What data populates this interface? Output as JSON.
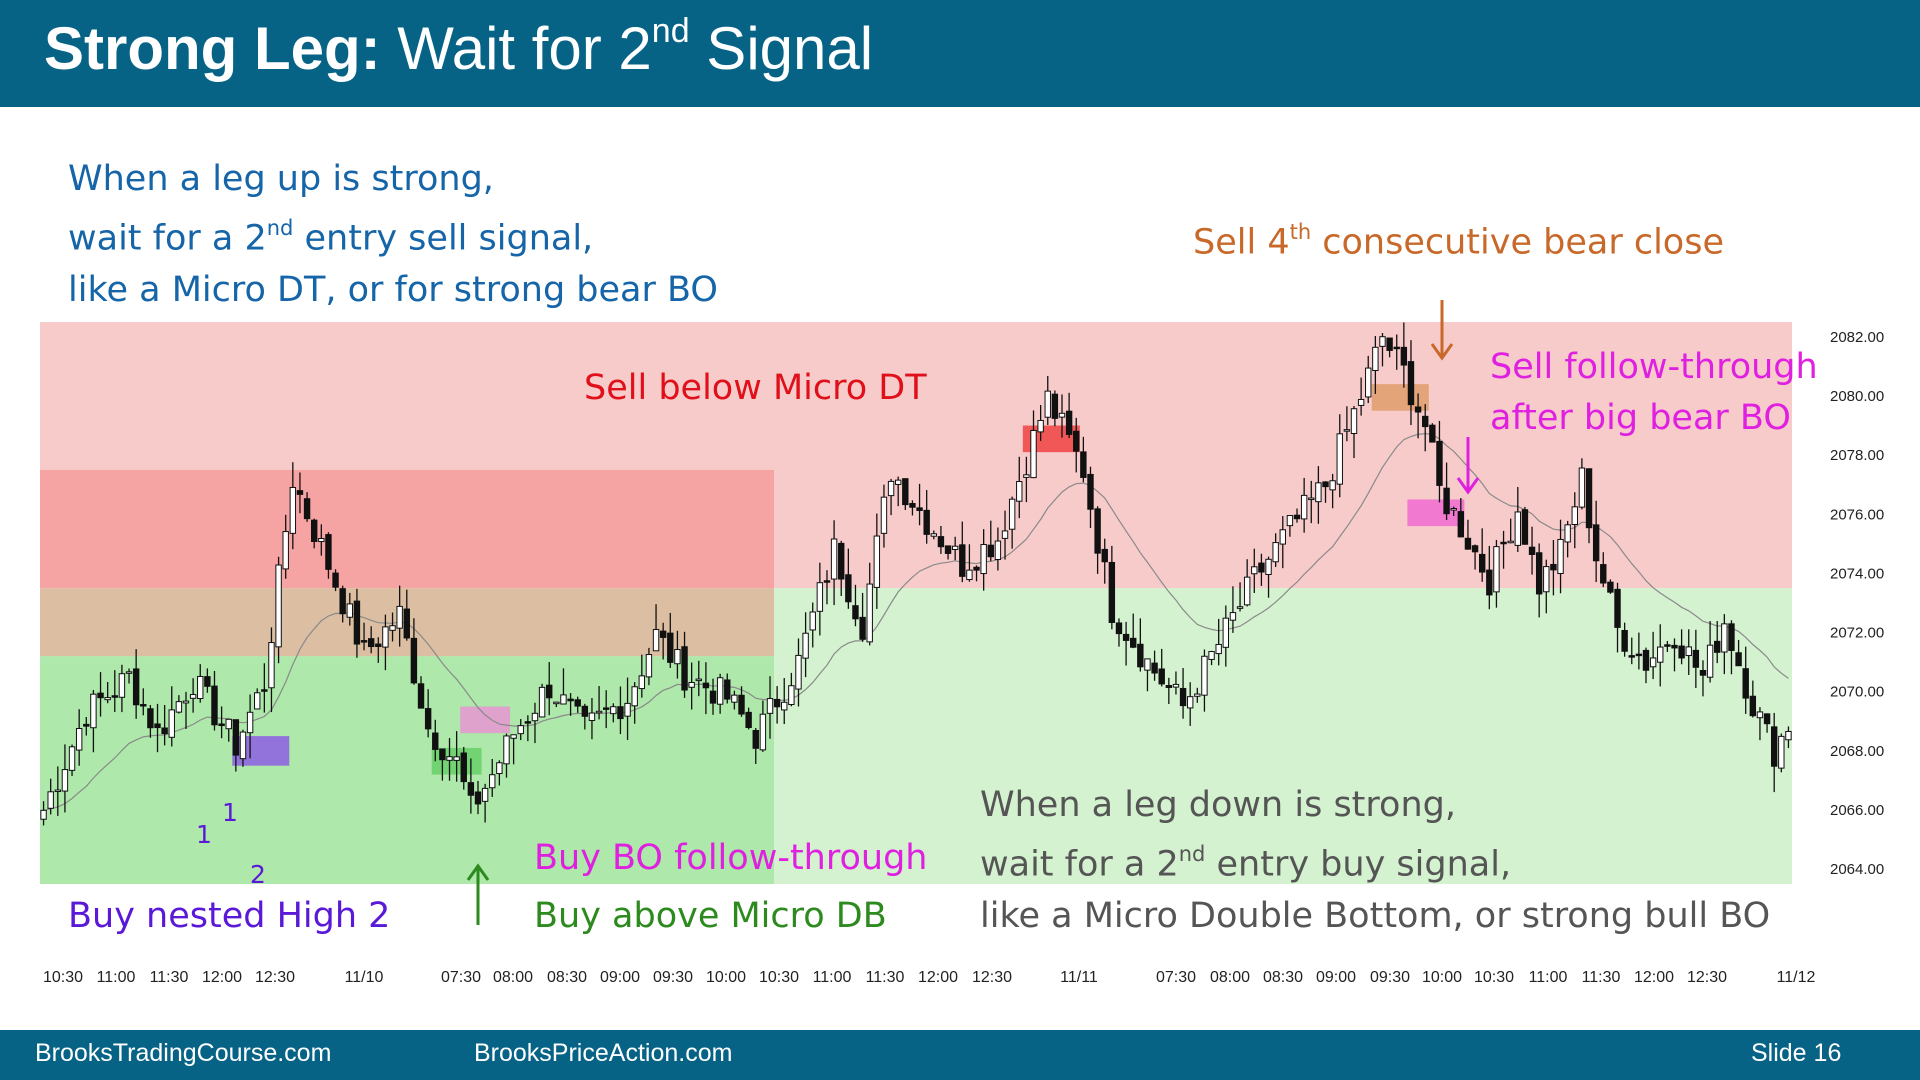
{
  "title": {
    "bold": "Strong Leg:",
    "pre": " Wait for 2",
    "sup": "nd",
    "post": " Signal"
  },
  "annotations": {
    "top_left": {
      "line1": "When a leg up is strong,",
      "line2_pre": "wait for a 2",
      "line2_sup": "nd",
      "line2_post": " entry sell signal,",
      "line3": "like a Micro DT, or for strong bear BO"
    },
    "sell_4th": {
      "pre": "Sell 4",
      "sup": "th",
      "post": " consecutive bear close"
    },
    "sell_micro_dt": "Sell below Micro DT",
    "sell_ft": {
      "line1": "Sell follow-through",
      "line2": "after big bear BO"
    },
    "buy_bo_ft": "Buy BO follow-through",
    "buy_micro_db": "Buy above Micro DB",
    "buy_nested": "Buy nested High 2",
    "bottom_right": {
      "line1": "When a leg down is strong,",
      "line2_pre": "wait for a 2",
      "line2_sup": "nd",
      "line2_post": " entry buy signal,",
      "line3": "like a Micro Double Bottom, or strong bull BO"
    },
    "counts": [
      "1",
      "1",
      "2"
    ]
  },
  "footer": {
    "left": "BrooksTradingCourse.com",
    "center": "BrooksPriceAction.com",
    "right": "Slide  16"
  },
  "colors": {
    "header": "#076386",
    "blue_text": "#1565a8",
    "orange_text": "#c8692a",
    "red_text": "#e0101a",
    "magenta_text": "#e020e0",
    "green_text": "#2d8a1e",
    "purple_text": "#5a18d8",
    "gray_text": "#555555"
  },
  "chart_data": {
    "type": "candlestick",
    "ylim": [
      2063.5,
      2082.5
    ],
    "y_ticks": [
      "2082.00",
      "2080.00",
      "2078.00",
      "2076.00",
      "2074.00",
      "2072.00",
      "2070.00",
      "2068.00",
      "2066.00",
      "2064.00"
    ],
    "x_ticks": [
      "10:30",
      "11:00",
      "11:30",
      "12:00",
      "12:30",
      "11/10",
      "07:30",
      "08:00",
      "08:30",
      "09:00",
      "09:30",
      "10:00",
      "10:30",
      "11:00",
      "11:30",
      "12:00",
      "12:30",
      "11/11",
      "07:30",
      "08:00",
      "08:30",
      "09:00",
      "09:30",
      "10:00",
      "10:30",
      "11:00",
      "11:30",
      "12:00",
      "12:30",
      "11/12"
    ],
    "close_path": [
      [
        0,
        2066.0
      ],
      [
        6,
        2069.3
      ],
      [
        12,
        2070.5
      ],
      [
        16,
        2068.6
      ],
      [
        21,
        2070.4
      ],
      [
        27,
        2068.2
      ],
      [
        31,
        2070.3
      ],
      [
        35,
        2077.2
      ],
      [
        40,
        2074.3
      ],
      [
        45,
        2071.3
      ],
      [
        50,
        2072.6
      ],
      [
        54,
        2068.8
      ],
      [
        58,
        2067.6
      ],
      [
        60,
        2066.0
      ],
      [
        63,
        2067.2
      ],
      [
        66,
        2068.6
      ],
      [
        71,
        2070.2
      ],
      [
        76,
        2068.7
      ],
      [
        82,
        2069.8
      ],
      [
        86,
        2071.9
      ],
      [
        90,
        2070.6
      ],
      [
        96,
        2069.8
      ],
      [
        100,
        2068.5
      ],
      [
        106,
        2071.0
      ],
      [
        111,
        2074.8
      ],
      [
        115,
        2072.3
      ],
      [
        119,
        2077.5
      ],
      [
        124,
        2075.8
      ],
      [
        129,
        2074.3
      ],
      [
        134,
        2075.2
      ],
      [
        137,
        2077.2
      ],
      [
        141,
        2079.9
      ],
      [
        146,
        2077.5
      ],
      [
        150,
        2072.8
      ],
      [
        155,
        2071.0
      ],
      [
        160,
        2069.5
      ],
      [
        165,
        2071.6
      ],
      [
        170,
        2073.8
      ],
      [
        175,
        2075.5
      ],
      [
        180,
        2077.0
      ],
      [
        185,
        2080.0
      ],
      [
        188,
        2082.0
      ],
      [
        191,
        2080.8
      ],
      [
        194,
        2079.0
      ],
      [
        196,
        2076.8
      ],
      [
        199,
        2075.6
      ],
      [
        203,
        2073.8
      ],
      [
        207,
        2076.2
      ],
      [
        210,
        2073.6
      ],
      [
        213,
        2074.7
      ],
      [
        216,
        2077.2
      ],
      [
        218,
        2074.6
      ],
      [
        221,
        2072.1
      ],
      [
        225,
        2071.0
      ],
      [
        229,
        2072.0
      ],
      [
        233,
        2070.5
      ],
      [
        236,
        2072.4
      ],
      [
        240,
        2069.6
      ],
      [
        243,
        2068.0
      ],
      [
        245,
        2068.9
      ]
    ],
    "zones": [
      {
        "name": "upper-red-zone",
        "y": [
          2073.5,
          2082.5
        ],
        "color": "#f8cbcb"
      },
      {
        "name": "lower-green-zone",
        "y": [
          2063.5,
          2073.5
        ],
        "color": "#d4f2d0"
      },
      {
        "name": "left-red-band",
        "y": [
          2073.5,
          2077.5
        ],
        "color": "#f6a3a3"
      },
      {
        "name": "left-tan-band",
        "y": [
          2071.2,
          2073.5
        ],
        "color": "#dcbfa2"
      },
      {
        "name": "left-green-band",
        "y": [
          2063.5,
          2071.2
        ],
        "color": "#aee8aa"
      }
    ],
    "signal_boxes": [
      {
        "name": "purple-signal-bar",
        "bar": [
          27,
          35
        ],
        "y": [
          2067.5,
          2068.5
        ],
        "color": "#8f66e0"
      },
      {
        "name": "pink-signal-bar-left",
        "bar": [
          59,
          66
        ],
        "y": [
          2068.6,
          2069.5
        ],
        "color": "#e39ad0"
      },
      {
        "name": "green-signal-bar",
        "bar": [
          55,
          62
        ],
        "y": [
          2067.2,
          2068.1
        ],
        "color": "#6ad06a"
      },
      {
        "name": "red-signal-bar",
        "bar": [
          138,
          146
        ],
        "y": [
          2078.1,
          2079.0
        ],
        "color": "#ef4a4a"
      },
      {
        "name": "orange-signal-bar",
        "bar": [
          187,
          195
        ],
        "y": [
          2079.5,
          2080.4
        ],
        "color": "#e0a070"
      },
      {
        "name": "magenta-signal-bar",
        "bar": [
          192,
          200
        ],
        "y": [
          2075.6,
          2076.5
        ],
        "color": "#ef70cf"
      }
    ],
    "bars": 246
  }
}
